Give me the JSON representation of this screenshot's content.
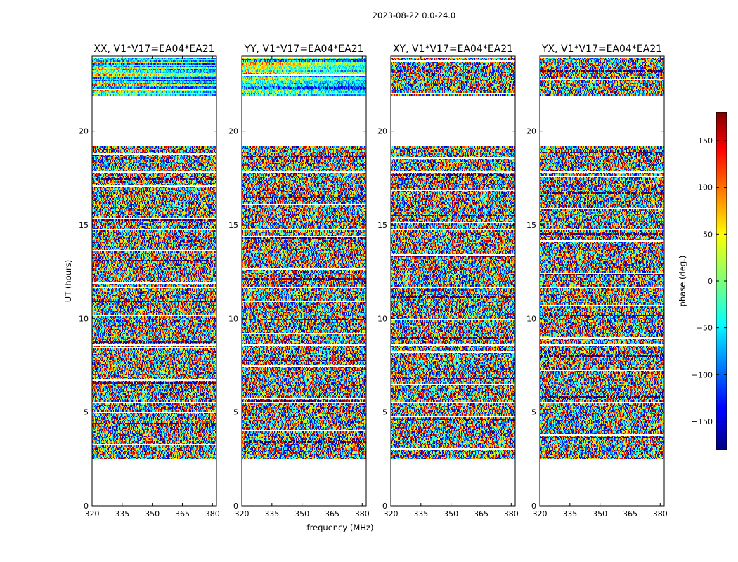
{
  "chart_data": {
    "type": "heatmap",
    "title": "2023-08-22 0.0-24.0",
    "xlabel": "frequency (MHz)",
    "ylabel": "UT (hours)",
    "xlim": [
      320,
      382
    ],
    "ylim": [
      0,
      24
    ],
    "x_ticks": [
      320,
      335,
      350,
      365,
      380
    ],
    "y_ticks": [
      0,
      5,
      10,
      15,
      20
    ],
    "data_extent_ut": [
      2.55,
      24.0
    ],
    "data_gap_ut": [
      [
        21.95,
        19.2
      ]
    ],
    "panels": [
      {
        "title": "XX, V1*V17=EA04*EA21"
      },
      {
        "title": "YY, V1*V17=EA04*EA21"
      },
      {
        "title": "XY, V1*V17=EA04*EA21"
      },
      {
        "title": "YX, V1*V17=EA04*EA21"
      }
    ],
    "colorbar": {
      "label": "phase (deg.)",
      "range": [
        -180,
        180
      ],
      "ticks": [
        150,
        100,
        50,
        0,
        -50,
        -100,
        -150
      ],
      "tick_labels": [
        "150",
        "100",
        "50",
        "0",
        "−50",
        "−100",
        "−150"
      ],
      "colormap": "jet"
    }
  }
}
